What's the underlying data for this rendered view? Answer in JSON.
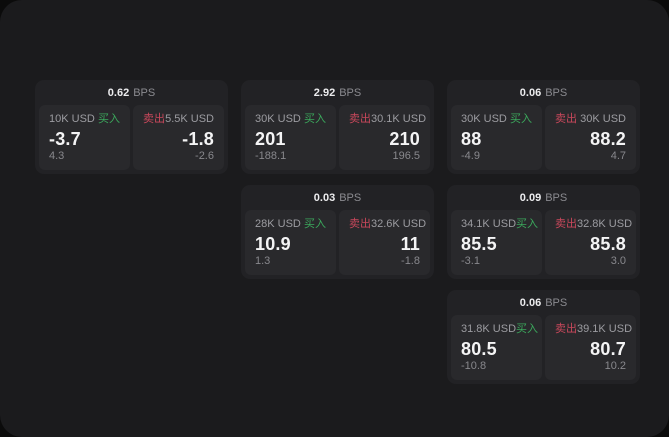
{
  "unit_label": "BPS",
  "colors": {
    "buy_accent": "#3ba85c",
    "sell_accent": "#c9485b",
    "window_bg": "#1b1b1d",
    "card_bg": "#222225",
    "panel_bg": "#29292c"
  },
  "cards": [
    {
      "bps": "0.62",
      "buy": {
        "notional": "10K USD",
        "side_label": "买入",
        "price": "-3.7",
        "delta": "4.3"
      },
      "sell": {
        "notional": "5.5K USD",
        "side_label": "卖出",
        "price": "-1.8",
        "delta": "-2.6"
      }
    },
    {
      "bps": "2.92",
      "buy": {
        "notional": "30K USD",
        "side_label": "买入",
        "price": "201",
        "delta": "-188.1"
      },
      "sell": {
        "notional": "30.1K USD",
        "side_label": "卖出",
        "price": "210",
        "delta": "196.5"
      }
    },
    {
      "bps": "0.06",
      "buy": {
        "notional": "30K USD",
        "side_label": "买入",
        "price": "88",
        "delta": "-4.9"
      },
      "sell": {
        "notional": "30K USD",
        "side_label": "卖出",
        "price": "88.2",
        "delta": "4.7"
      }
    },
    {
      "bps": "0.03",
      "buy": {
        "notional": "28K USD",
        "side_label": "买入",
        "price": "10.9",
        "delta": "1.3"
      },
      "sell": {
        "notional": "32.6K USD",
        "side_label": "卖出",
        "price": "11",
        "delta": "-1.8"
      }
    },
    {
      "bps": "0.09",
      "buy": {
        "notional": "34.1K USD",
        "side_label": "买入",
        "price": "85.5",
        "delta": "-3.1"
      },
      "sell": {
        "notional": "32.8K USD",
        "side_label": "卖出",
        "price": "85.8",
        "delta": "3.0"
      }
    },
    {
      "bps": "0.06",
      "buy": {
        "notional": "31.8K USD",
        "side_label": "买入",
        "price": "80.5",
        "delta": "-10.8"
      },
      "sell": {
        "notional": "39.1K USD",
        "side_label": "卖出",
        "price": "80.7",
        "delta": "10.2"
      }
    }
  ]
}
